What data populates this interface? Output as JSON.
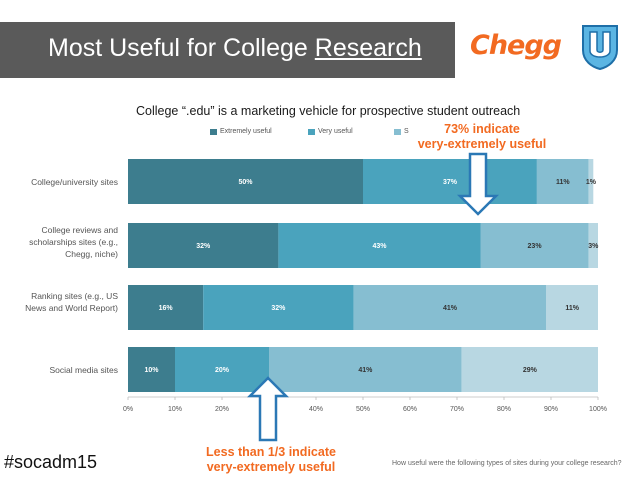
{
  "header": {
    "title_plain": "Most Useful for College ",
    "title_underlined": "Research",
    "brand_logo": "Chegg",
    "brand_icon": "u-shield-icon"
  },
  "chart_data": {
    "type": "bar",
    "orientation": "horizontal-stacked",
    "title": "College “.edu” is a marketing vehicle for prospective student outreach",
    "categories": [
      "College/university sites",
      "College reviews and scholarships sites (e.g., Chegg, niche)",
      "Ranking sites (e.g., US News and World Report)",
      "Social media sites"
    ],
    "series": [
      {
        "name": "Extremely useful",
        "color": "#3d7d8e",
        "values": [
          50,
          32,
          16,
          10
        ]
      },
      {
        "name": "Very useful",
        "color": "#4aa3bd",
        "values": [
          37,
          43,
          32,
          20
        ]
      },
      {
        "name": "S",
        "color": "#86bed1",
        "values": [
          11,
          23,
          41,
          41
        ]
      },
      {
        "name": "",
        "color": "#b8d7e2",
        "values": [
          1,
          3,
          11,
          29
        ]
      }
    ],
    "x_ticks": [
      "0%",
      "10%",
      "20%",
      "40%",
      "50%",
      "60%",
      "70%",
      "80%",
      "90%",
      "100%"
    ],
    "xlim": [
      0,
      100
    ],
    "legend_position": "top",
    "grid": false
  },
  "callouts": {
    "top_line1": "73% indicate",
    "top_line2": "very-extremely useful",
    "bottom_line1": "Less than 1/3 indicate",
    "bottom_line2": "very-extremely useful",
    "arrow_color": "#2b78b5",
    "text_color": "#f26a21"
  },
  "footer": {
    "hashtag": "#socadm15",
    "question": "How useful were the following types of sites during your college research?"
  }
}
